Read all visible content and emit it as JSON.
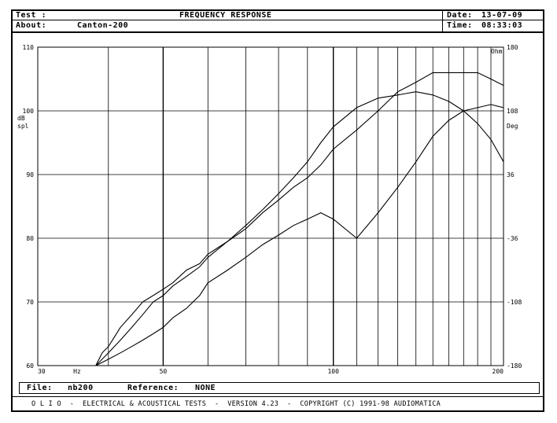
{
  "header": {
    "test_label": "Test :",
    "about_label": "About:",
    "about_value": "Canton-200",
    "title": "FREQUENCY RESPONSE",
    "date_label": "Date:",
    "date_value": "13-07-09",
    "time_label": "Time:",
    "time_value": "08:33:03"
  },
  "chart_data": {
    "type": "line",
    "title": "FREQUENCY RESPONSE",
    "x_scale": "log",
    "xlim": [
      30,
      200
    ],
    "x_tick_labels": [
      "30",
      "Hz",
      "50",
      "100",
      "200"
    ],
    "ylim": [
      60,
      110
    ],
    "y_ticks": [
      60,
      70,
      80,
      90,
      100,
      110
    ],
    "ylabel": "dB spl",
    "y2lim": [
      -180,
      180
    ],
    "y2_ticks": [
      -180,
      -108,
      -36,
      36,
      108,
      180
    ],
    "y2label": "Deg",
    "y2_unit_label": "Ohm",
    "grid": true,
    "series": [
      {
        "x": [
          38,
          39,
          40,
          41,
          42,
          44,
          46,
          48,
          50,
          52,
          55,
          58,
          60,
          65,
          70,
          75,
          80,
          85,
          90,
          95,
          100,
          110,
          120,
          130,
          140,
          150,
          160,
          170,
          180,
          190,
          200
        ],
        "values": [
          60,
          62,
          63,
          64.5,
          66,
          68,
          70,
          71,
          72,
          73,
          75,
          76,
          77.5,
          79.5,
          81.5,
          84,
          86,
          88,
          89.5,
          91.5,
          94,
          97,
          100,
          103,
          104.5,
          106,
          106,
          106,
          106,
          105,
          104
        ]
      },
      {
        "x": [
          38,
          40,
          42,
          44,
          46,
          48,
          50,
          52,
          55,
          58,
          60,
          65,
          70,
          75,
          80,
          85,
          90,
          95,
          100,
          110,
          120,
          130,
          140,
          150,
          160,
          170,
          180,
          190,
          200
        ],
        "values": [
          60,
          62,
          64,
          66,
          68,
          70,
          71,
          72.5,
          74,
          75.5,
          77,
          79.5,
          82,
          84.5,
          87,
          89.5,
          92,
          95,
          97.5,
          100.5,
          102,
          102.5,
          103,
          102.5,
          101.5,
          100,
          98,
          95.5,
          92
        ]
      },
      {
        "x": [
          38,
          40,
          42,
          44,
          46,
          48,
          50,
          52,
          55,
          58,
          60,
          65,
          70,
          75,
          80,
          85,
          90,
          95,
          100,
          110,
          120,
          130,
          140,
          150,
          160,
          170,
          180,
          190,
          200
        ],
        "values": [
          60,
          61,
          62,
          63,
          64,
          65,
          66,
          67.5,
          69,
          71,
          73,
          75,
          77,
          79,
          80.5,
          82,
          83,
          84,
          83,
          80,
          84,
          88,
          92,
          96,
          98.5,
          100,
          100.5,
          101,
          100.5
        ]
      }
    ]
  },
  "footer": {
    "file_label": "File:",
    "file_value": "nb200",
    "reference_label": "Reference:",
    "reference_value": "NONE",
    "product_line": "O L I O  -  ELECTRICAL & ACOUSTICAL TESTS  -  VERSION 4.23  -  COPYRIGHT (C) 1991-98 AUDIOMATICA"
  }
}
